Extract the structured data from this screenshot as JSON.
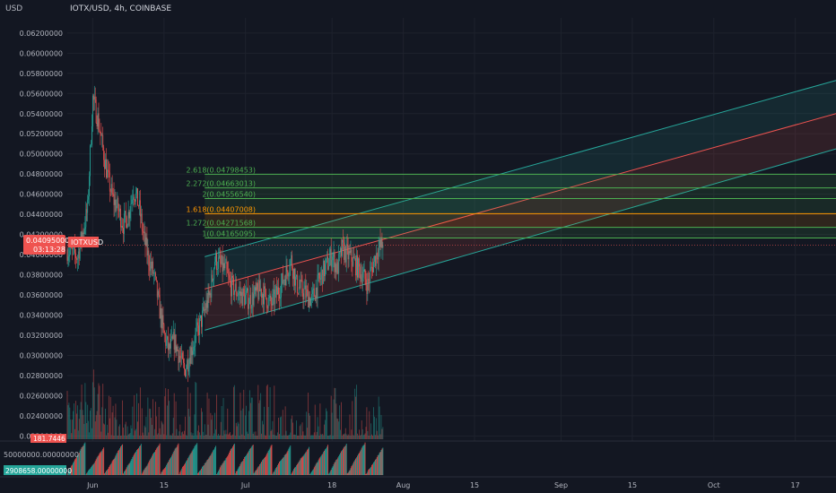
{
  "header": {
    "currency": "USD",
    "symbol_line": "IOTX/USD, 4h, COINBASE"
  },
  "price_badge": {
    "price": "0.04095000",
    "countdown": "03:13:28",
    "symbol": "IOTXUSD"
  },
  "volume_badge": {
    "value": "181.7446"
  },
  "osc_pane": {
    "top_label": "50000000.00000000",
    "value_badge": "2908658.00000000"
  },
  "colors": {
    "bg": "#131722",
    "grid": "#1e222d",
    "up": "#26a69a",
    "down": "#ef5350",
    "fib_green": "#4caf50",
    "fib_orange": "#ff9800",
    "channel_teal": "#26a69a",
    "channel_red": "#ef5350"
  },
  "chart_data": {
    "type": "candlestick",
    "y_axis": {
      "ticks": [
        "0.06200000",
        "0.06000000",
        "0.05800000",
        "0.05600000",
        "0.05400000",
        "0.05200000",
        "0.05000000",
        "0.04800000",
        "0.04600000",
        "0.04400000",
        "0.04200000",
        "0.04000000",
        "0.03800000",
        "0.03600000",
        "0.03400000",
        "0.03200000",
        "0.03000000",
        "0.02800000",
        "0.02600000",
        "0.02400000",
        "0.02200000"
      ],
      "range": [
        0.0215,
        0.0635
      ]
    },
    "x_axis": {
      "tick_labels": [
        "Jun",
        "15",
        "Jul",
        "18",
        "Aug",
        "15",
        "Sep",
        "15",
        "Oct",
        "17"
      ],
      "range": [
        "2021-05-27",
        "2021-10-25"
      ]
    },
    "price_series": [
      [
        "2021-05-27",
        0.0405
      ],
      [
        "2021-05-29",
        0.0398
      ],
      [
        "2021-05-31",
        0.0445
      ],
      [
        "2021-06-01",
        0.0555
      ],
      [
        "2021-06-02",
        0.0535
      ],
      [
        "2021-06-03",
        0.0505
      ],
      [
        "2021-06-04",
        0.0475
      ],
      [
        "2021-06-05",
        0.0455
      ],
      [
        "2021-06-06",
        0.0445
      ],
      [
        "2021-06-07",
        0.043
      ],
      [
        "2021-06-08",
        0.044
      ],
      [
        "2021-06-09",
        0.0465
      ],
      [
        "2021-06-10",
        0.045
      ],
      [
        "2021-06-11",
        0.0418
      ],
      [
        "2021-06-12",
        0.0395
      ],
      [
        "2021-06-13",
        0.038
      ],
      [
        "2021-06-14",
        0.035
      ],
      [
        "2021-06-15",
        0.032
      ],
      [
        "2021-06-16",
        0.0305
      ],
      [
        "2021-06-17",
        0.0315
      ],
      [
        "2021-06-18",
        0.03
      ],
      [
        "2021-06-19",
        0.0285
      ],
      [
        "2021-06-20",
        0.03
      ],
      [
        "2021-06-21",
        0.0315
      ],
      [
        "2021-06-22",
        0.033
      ],
      [
        "2021-06-24",
        0.036
      ],
      [
        "2021-06-25",
        0.0395
      ],
      [
        "2021-06-27",
        0.0385
      ],
      [
        "2021-06-28",
        0.037
      ],
      [
        "2021-06-30",
        0.036
      ],
      [
        "2021-07-02",
        0.0355
      ],
      [
        "2021-07-04",
        0.0365
      ],
      [
        "2021-07-06",
        0.035
      ],
      [
        "2021-07-08",
        0.037
      ],
      [
        "2021-07-10",
        0.0395
      ],
      [
        "2021-07-11",
        0.037
      ],
      [
        "2021-07-13",
        0.036
      ],
      [
        "2021-07-14",
        0.0355
      ],
      [
        "2021-07-16",
        0.038
      ],
      [
        "2021-07-18",
        0.04
      ],
      [
        "2021-07-19",
        0.0385
      ],
      [
        "2021-07-20",
        0.0405
      ],
      [
        "2021-07-22",
        0.0395
      ],
      [
        "2021-07-24",
        0.038
      ],
      [
        "2021-07-25",
        0.037
      ],
      [
        "2021-07-26",
        0.039
      ],
      [
        "2021-07-27",
        0.0405
      ],
      [
        "2021-07-28",
        0.04095
      ]
    ],
    "fibonacci_levels": [
      {
        "label": "1(0.04165095)",
        "ratio": 1,
        "price": 0.04165095,
        "color": "#4caf50"
      },
      {
        "label": "1.272(0.04271568)",
        "ratio": 1.272,
        "price": 0.04271568,
        "color": "#4caf50"
      },
      {
        "label": "1.618(0.04407008)",
        "ratio": 1.618,
        "price": 0.04407008,
        "color": "#ff9800"
      },
      {
        "label": "2(0.04556540)",
        "ratio": 2,
        "price": 0.0455654,
        "color": "#4caf50"
      },
      {
        "label": "2.272(0.04663013)",
        "ratio": 2.272,
        "price": 0.04663013,
        "color": "#4caf50"
      },
      {
        "label": "2.618(0.04798453)",
        "ratio": 2.618,
        "price": 0.04798453,
        "color": "#4caf50"
      }
    ],
    "fib_start_date": "2021-06-23",
    "channel": {
      "start": "2021-06-23",
      "end": "2021-10-25",
      "upper": [
        0.0398,
        0.0573
      ],
      "middle": [
        0.0366,
        0.054
      ],
      "lower": [
        0.0325,
        0.0505
      ]
    },
    "current_price": 0.04095
  }
}
